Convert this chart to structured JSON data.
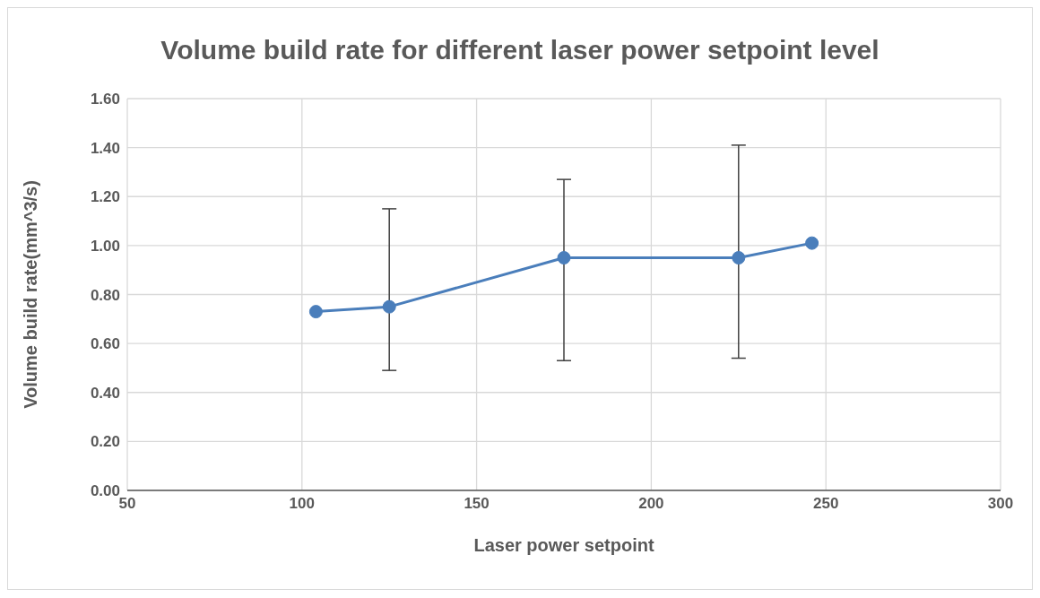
{
  "chart_data": {
    "type": "line",
    "title": "Volume build rate for different laser power setpoint level",
    "xlabel": "Laser power setpoint",
    "ylabel": "Volume build rate(mm^3/s)",
    "x": [
      104,
      125,
      175,
      225,
      246
    ],
    "series": [
      {
        "color": "#4a7ebb",
        "values": [
          0.73,
          0.75,
          0.95,
          0.95,
          1.01
        ],
        "errors": [
          null,
          [
            0.49,
            1.15
          ],
          [
            0.53,
            1.27
          ],
          [
            0.54,
            1.41
          ],
          null
        ]
      }
    ],
    "xlim": [
      50,
      300
    ],
    "xticks": [
      50,
      100,
      150,
      200,
      250,
      300
    ],
    "ylim": [
      0,
      1.6
    ],
    "yticks": [
      {
        "value": 0,
        "label": "0.00"
      },
      {
        "value": 0.2,
        "label": "0.20"
      },
      {
        "value": 0.4,
        "label": "0.40"
      },
      {
        "value": 0.6,
        "label": "0.60"
      },
      {
        "value": 0.8,
        "label": "0.80"
      },
      {
        "value": 1,
        "label": "1.00"
      },
      {
        "value": 1.2,
        "label": "1.20"
      },
      {
        "value": 1.4,
        "label": "1.40"
      },
      {
        "value": 1.6,
        "label": "1.60"
      }
    ],
    "grid": true,
    "marker": "circle",
    "line_style": "solid"
  }
}
